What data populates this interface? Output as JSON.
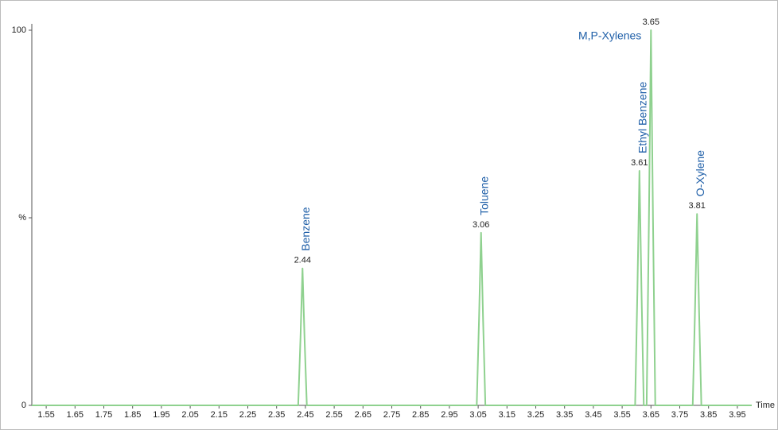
{
  "chart_data": {
    "type": "line",
    "x_label": "Time",
    "x": [
      1.5,
      2.425,
      2.433,
      2.44,
      2.447,
      2.455,
      3.045,
      3.053,
      3.06,
      3.067,
      3.075,
      3.595,
      3.603,
      3.61,
      3.617,
      3.625,
      3.635,
      3.643,
      3.65,
      3.657,
      3.665,
      3.795,
      3.803,
      3.81,
      3.817,
      3.825,
      4.0
    ],
    "series": [
      {
        "color": "#8fd18f",
        "values": [
          0,
          0,
          18,
          36.5,
          18,
          0,
          0,
          23,
          46,
          23,
          0,
          0,
          31,
          62.5,
          31,
          0,
          0,
          50,
          100,
          50,
          0,
          0,
          25.5,
          51,
          25.5,
          0,
          0
        ]
      }
    ],
    "xlim": [
      1.5,
      4.0
    ],
    "xticks": [
      1.55,
      1.65,
      1.75,
      1.85,
      1.95,
      2.05,
      2.15,
      2.25,
      2.35,
      2.45,
      2.55,
      2.65,
      2.75,
      2.85,
      2.95,
      3.05,
      3.15,
      3.25,
      3.35,
      3.45,
      3.55,
      3.65,
      3.75,
      3.85,
      3.95
    ],
    "ylim": [
      0,
      100
    ],
    "yticks": [
      0,
      {
        "value": 50,
        "label": "%"
      },
      100
    ],
    "annotations": [
      {
        "text": "Benzene",
        "x": 2.44,
        "orientation": "vertical"
      },
      {
        "text": "Toluene",
        "x": 3.06,
        "orientation": "vertical"
      },
      {
        "text": "Ethyl Benzene",
        "x": 3.61,
        "orientation": "vertical"
      },
      {
        "text": "M,P-Xylenes",
        "x": 3.65,
        "orientation": "horizontal"
      },
      {
        "text": "O-Xylene",
        "x": 3.81,
        "orientation": "vertical"
      }
    ]
  }
}
